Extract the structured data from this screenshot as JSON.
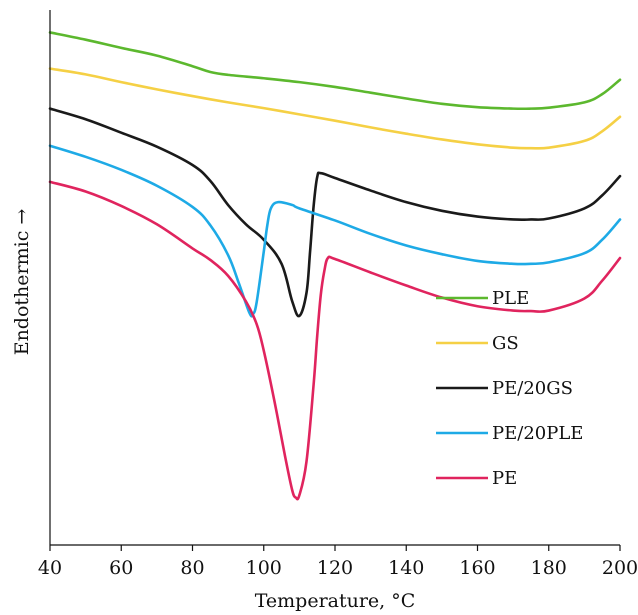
{
  "chart_data": {
    "type": "line",
    "title": "",
    "xlabel": "Temperature, °C",
    "ylabel": "Endothermic →",
    "xlim": [
      40,
      200
    ],
    "x_ticks": [
      40,
      60,
      80,
      100,
      120,
      140,
      160,
      180,
      200
    ],
    "y_ticks_shown": false,
    "grid": false,
    "legend_position": "lower-right",
    "y_units": "relative heat flow (arbitrary, top = 10)",
    "series": [
      {
        "name": "PLE",
        "color": "#5cb82e",
        "x": [
          40,
          50,
          60,
          70,
          80,
          85,
          90,
          100,
          110,
          120,
          130,
          140,
          150,
          160,
          170,
          175,
          180,
          190,
          195,
          200
        ],
        "y": [
          9.7,
          9.55,
          9.38,
          9.22,
          9.0,
          8.88,
          8.82,
          8.75,
          8.67,
          8.57,
          8.45,
          8.33,
          8.22,
          8.15,
          8.12,
          8.12,
          8.14,
          8.25,
          8.42,
          8.72
        ]
      },
      {
        "name": "GS",
        "color": "#f5d045",
        "x": [
          40,
          50,
          60,
          70,
          80,
          90,
          100,
          110,
          120,
          130,
          140,
          150,
          160,
          170,
          175,
          180,
          190,
          195,
          200
        ],
        "y": [
          8.95,
          8.83,
          8.67,
          8.52,
          8.38,
          8.25,
          8.13,
          8.0,
          7.87,
          7.73,
          7.6,
          7.48,
          7.38,
          7.31,
          7.3,
          7.31,
          7.45,
          7.65,
          7.95
        ]
      },
      {
        "name": "PE/20GS",
        "color": "#1a1a1a",
        "x": [
          40,
          50,
          60,
          70,
          80,
          85,
          90,
          95,
          100,
          105,
          108,
          110,
          112,
          113,
          114,
          115,
          116,
          120,
          130,
          140,
          150,
          160,
          170,
          175,
          180,
          190,
          195,
          200
        ],
        "y": [
          8.12,
          7.9,
          7.62,
          7.33,
          6.95,
          6.62,
          6.12,
          5.72,
          5.4,
          4.9,
          4.12,
          3.82,
          4.3,
          5.15,
          6.1,
          6.7,
          6.78,
          6.68,
          6.42,
          6.18,
          6.0,
          5.88,
          5.82,
          5.82,
          5.84,
          6.05,
          6.32,
          6.72
        ]
      },
      {
        "name": "PE/20PLE",
        "color": "#1eaae6",
        "x": [
          40,
          50,
          60,
          70,
          80,
          85,
          90,
          93,
          96,
          97,
          98,
          100,
          101,
          102,
          104,
          108,
          110,
          120,
          130,
          140,
          150,
          160,
          170,
          175,
          180,
          190,
          195,
          200
        ],
        "y": [
          7.35,
          7.12,
          6.85,
          6.52,
          6.08,
          5.7,
          5.08,
          4.5,
          3.88,
          3.86,
          4.1,
          5.15,
          5.7,
          6.05,
          6.18,
          6.12,
          6.05,
          5.8,
          5.52,
          5.28,
          5.1,
          4.96,
          4.9,
          4.9,
          4.93,
          5.12,
          5.4,
          5.82
        ]
      },
      {
        "name": "PE",
        "color": "#e0245e",
        "x": [
          40,
          50,
          60,
          70,
          80,
          85,
          90,
          95,
          98,
          100,
          103,
          106,
          108,
          109,
          110,
          112,
          114,
          115,
          116,
          117,
          118,
          120,
          130,
          140,
          150,
          160,
          170,
          175,
          180,
          190,
          195,
          200
        ],
        "y": [
          6.6,
          6.4,
          6.1,
          5.72,
          5.22,
          4.98,
          4.65,
          4.12,
          3.65,
          3.1,
          2.05,
          0.9,
          0.2,
          0.05,
          0.1,
          0.8,
          2.4,
          3.4,
          4.25,
          4.75,
          5.02,
          5.0,
          4.72,
          4.45,
          4.2,
          4.02,
          3.93,
          3.92,
          3.93,
          4.18,
          4.55,
          5.02
        ]
      }
    ],
    "legend": [
      {
        "name": "PLE",
        "color": "#5cb82e"
      },
      {
        "name": "GS",
        "color": "#f5d045"
      },
      {
        "name": "PE/20GS",
        "color": "#1a1a1a"
      },
      {
        "name": "PE/20PLE",
        "color": "#1eaae6"
      },
      {
        "name": "PE",
        "color": "#e0245e"
      }
    ]
  }
}
